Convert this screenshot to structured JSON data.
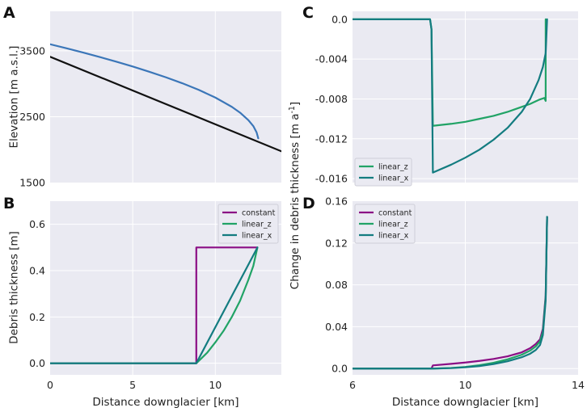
{
  "colors": {
    "surface": "#3b76b8",
    "bed": "#111111",
    "constant": "#8b0e85",
    "linear_z": "#21a366",
    "linear_x": "#137c80"
  },
  "chart_data": [
    {
      "id": "A",
      "type": "line",
      "panel_letter": "A",
      "title": "",
      "xlabel": "",
      "ylabel": "Elevation [m a.s.l.]",
      "xlim": [
        0,
        14
      ],
      "ylim": [
        1500,
        4100
      ],
      "xticks": [
        0,
        5,
        10
      ],
      "xtick_labels": [],
      "yticks": [
        1500,
        2500,
        3500
      ],
      "ytick_labels": [
        "1500",
        "2500",
        "3500"
      ],
      "series": [
        {
          "name": "surface",
          "color_key": "surface",
          "x": [
            0,
            1,
            2,
            3,
            4,
            5,
            6,
            7,
            8,
            9,
            10,
            11,
            11.5,
            12,
            12.3,
            12.5,
            12.6
          ],
          "y": [
            3600,
            3538,
            3474,
            3406,
            3336,
            3262,
            3183,
            3099,
            3008,
            2907,
            2791,
            2650,
            2561,
            2448,
            2358,
            2262,
            2172
          ]
        },
        {
          "name": "bed",
          "color_key": "bed",
          "x": [
            0,
            14
          ],
          "y": [
            3410,
            1975
          ]
        }
      ]
    },
    {
      "id": "B",
      "type": "line",
      "panel_letter": "B",
      "title": "",
      "xlabel": "Distance downglacier [km]",
      "ylabel": "Debris thickness [m]",
      "xlim": [
        0,
        14
      ],
      "ylim": [
        -0.05,
        0.7
      ],
      "xticks": [
        0,
        5,
        10
      ],
      "xtick_labels": [
        "0",
        "5",
        "10"
      ],
      "yticks": [
        0.0,
        0.2,
        0.4,
        0.6
      ],
      "ytick_labels": [
        "0.0",
        "0.2",
        "0.4",
        "0.6"
      ],
      "legend": {
        "position": "top-right",
        "entries": [
          {
            "label": "constant",
            "color_key": "constant"
          },
          {
            "label": "linear_z",
            "color_key": "linear_z"
          },
          {
            "label": "linear_x",
            "color_key": "linear_x"
          }
        ]
      },
      "series": [
        {
          "name": "constant",
          "color_key": "constant",
          "x": [
            0,
            8.85,
            8.85,
            12.55
          ],
          "y": [
            0,
            0,
            0.5,
            0.5
          ]
        },
        {
          "name": "linear_z",
          "color_key": "linear_z",
          "x": [
            0,
            8.85,
            9.5,
            10,
            10.5,
            11,
            11.5,
            12,
            12.3,
            12.55
          ],
          "y": [
            0,
            0,
            0.045,
            0.09,
            0.14,
            0.2,
            0.27,
            0.36,
            0.42,
            0.5
          ]
        },
        {
          "name": "linear_x",
          "color_key": "linear_x",
          "x": [
            0,
            8.85,
            12.55
          ],
          "y": [
            0,
            0,
            0.5
          ]
        }
      ]
    },
    {
      "id": "C",
      "type": "line",
      "panel_letter": "C",
      "title": "",
      "xlabel": "",
      "ylabel": "",
      "xlim": [
        6,
        14
      ],
      "ylim": [
        -0.0164,
        0.0008
      ],
      "xticks": [
        6,
        10,
        14
      ],
      "xtick_labels": [],
      "yticks": [
        0.0,
        -0.004,
        -0.008,
        -0.012,
        -0.016
      ],
      "ytick_labels": [
        "0.0",
        "-0.004",
        "-0.008",
        "-0.012",
        "-0.016"
      ],
      "legend": {
        "position": "bottom-left",
        "entries": [
          {
            "label": "linear_z",
            "color_key": "linear_z"
          },
          {
            "label": "linear_x",
            "color_key": "linear_x"
          }
        ]
      },
      "series": [
        {
          "name": "linear_z",
          "color_key": "linear_z",
          "x": [
            6,
            8.75,
            8.8,
            8.85,
            9.5,
            10,
            10.5,
            11,
            11.5,
            12,
            12.3,
            12.6,
            12.8,
            12.85,
            12.85
          ],
          "y": [
            0,
            0,
            -0.001,
            -0.0107,
            -0.0105,
            -0.0103,
            -0.01,
            -0.0097,
            -0.0093,
            -0.0088,
            -0.0085,
            -0.0081,
            -0.0079,
            -0.0082,
            0
          ]
        },
        {
          "name": "linear_x",
          "color_key": "linear_x",
          "x": [
            6,
            8.75,
            8.8,
            8.85,
            9.5,
            10,
            10.5,
            11,
            11.5,
            12,
            12.3,
            12.6,
            12.75,
            12.85,
            12.9
          ],
          "y": [
            0,
            0,
            -0.001,
            -0.0154,
            -0.0146,
            -0.0139,
            -0.0131,
            -0.0121,
            -0.0109,
            -0.0093,
            -0.008,
            -0.0061,
            -0.0048,
            -0.0034,
            0
          ]
        }
      ]
    },
    {
      "id": "D",
      "type": "line",
      "panel_letter": "D",
      "title": "",
      "xlabel": "Distance downglacier [km]",
      "ylabel": "",
      "xlim": [
        6,
        14
      ],
      "ylim": [
        -0.006,
        0.16
      ],
      "xticks": [
        6,
        10,
        14
      ],
      "xtick_labels": [
        "6",
        "10",
        "14"
      ],
      "yticks": [
        0.0,
        0.04,
        0.08,
        0.12,
        0.16
      ],
      "ytick_labels": [
        "0.0",
        "0.04",
        "0.08",
        "0.12",
        "0.16"
      ],
      "legend": {
        "position": "top-left",
        "entries": [
          {
            "label": "constant",
            "color_key": "constant"
          },
          {
            "label": "linear_z",
            "color_key": "linear_z"
          },
          {
            "label": "linear_x",
            "color_key": "linear_x"
          }
        ]
      },
      "series": [
        {
          "name": "constant",
          "color_key": "constant",
          "x": [
            6,
            8.8,
            8.85,
            9.5,
            10,
            10.5,
            11,
            11.5,
            12,
            12.3,
            12.5,
            12.65,
            12.75,
            12.85,
            12.9
          ],
          "y": [
            0,
            0,
            0.003,
            0.0045,
            0.0058,
            0.0073,
            0.0092,
            0.0117,
            0.0155,
            0.0195,
            0.0235,
            0.028,
            0.038,
            0.07,
            0.145
          ]
        },
        {
          "name": "linear_z",
          "color_key": "linear_z",
          "x": [
            6,
            8.85,
            9.5,
            10,
            10.5,
            11,
            11.5,
            12,
            12.3,
            12.5,
            12.65,
            12.75,
            12.85,
            12.9
          ],
          "y": [
            0,
            0,
            0.0006,
            0.0016,
            0.0032,
            0.0055,
            0.0088,
            0.0132,
            0.0172,
            0.0212,
            0.026,
            0.035,
            0.068,
            0.145
          ]
        },
        {
          "name": "linear_x",
          "color_key": "linear_x",
          "x": [
            6,
            8.85,
            9.5,
            10,
            10.5,
            11,
            11.5,
            12,
            12.3,
            12.5,
            12.65,
            12.75,
            12.85,
            12.9
          ],
          "y": [
            0,
            0,
            0.0004,
            0.0012,
            0.0024,
            0.0043,
            0.007,
            0.0108,
            0.0142,
            0.0178,
            0.0225,
            0.032,
            0.065,
            0.145
          ]
        }
      ]
    }
  ],
  "shared_ylabel_right": {
    "main": "Change in debris thickness [m a",
    "superscript": "-1",
    "suffix": "]"
  }
}
